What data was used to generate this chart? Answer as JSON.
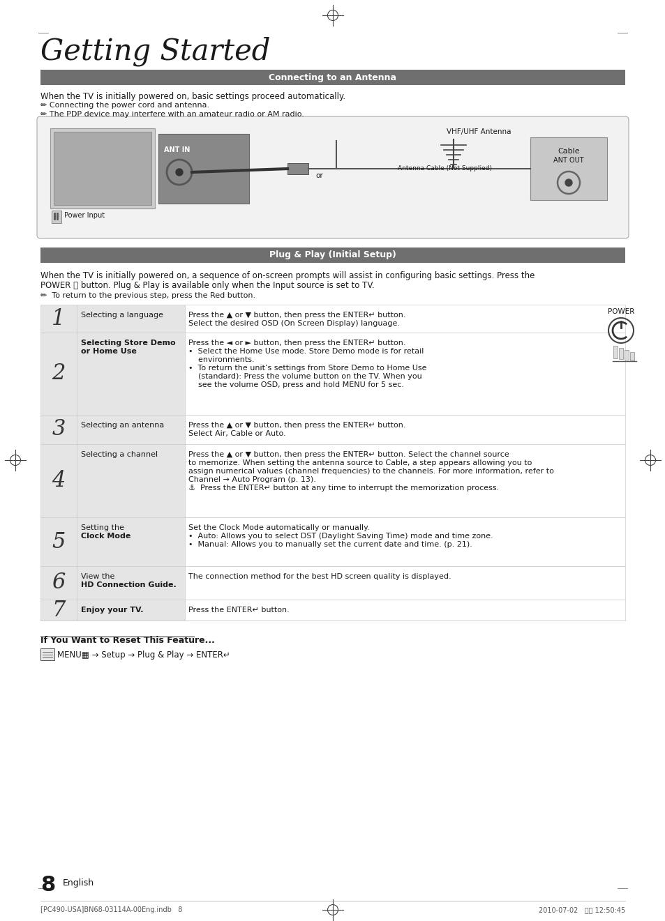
{
  "title": "Getting Started",
  "section1_header": "Connecting to an Antenna",
  "section2_header": "Plug & Play (Initial Setup)",
  "header_bg": "#706f6f",
  "header_text_color": "#ffffff",
  "page_bg": "#ffffff",
  "body_color": "#1a1a1a",
  "row_bg_light": "#e5e5e5",
  "row_bg_white": "#ffffff",
  "section1_text1": "When the TV is initially powered on, basic settings proceed automatically.",
  "section1_text2": "Connecting the power cord and antenna.",
  "section1_text3": "The PDP device may interfere with an amateur radio or AM radio.",
  "section2_intro1": "When the TV is initially powered on, a sequence of on-screen prompts will assist in configuring basic settings. Press the",
  "section2_intro2": "POWER ⏻ button. Plug & Play is available only when the Input source is set to TV.",
  "section2_note": "To return to the previous step, press the Red button.",
  "steps": [
    {
      "num": "1",
      "title_plain": "Selecting a language",
      "title_bold_words": [],
      "content": [
        "Press the ▲ or ▼ button, then press the ENTER↵ button.",
        "Select the desired OSD (On Screen Display) language."
      ]
    },
    {
      "num": "2",
      "title_plain": "Selecting Store Demo\nor Home Use",
      "title_bold_words": [
        "Store Demo",
        "Home Use"
      ],
      "content": [
        "Press the ◄ or ► button, then press the ENTER↵ button.",
        "•  Select the Home Use mode. Store Demo mode is for retail",
        "    environments.",
        "•  To return the unit’s settings from Store Demo to Home Use",
        "    (standard): Press the volume button on the TV. When you",
        "    see the volume OSD, press and hold MENU for 5 sec."
      ]
    },
    {
      "num": "3",
      "title_plain": "Selecting an antenna",
      "title_bold_words": [],
      "content": [
        "Press the ▲ or ▼ button, then press the ENTER↵ button.",
        "Select Air, Cable or Auto."
      ]
    },
    {
      "num": "4",
      "title_plain": "Selecting a channel",
      "title_bold_words": [],
      "content": [
        "Press the ▲ or ▼ button, then press the ENTER↵ button. Select the channel source",
        "to memorize. When setting the antenna source to Cable, a step appears allowing you to",
        "assign numerical values (channel frequencies) to the channels. For more information, refer to",
        "Channel → Auto Program (p. 13).",
        "⚓  Press the ENTER↵ button at any time to interrupt the memorization process."
      ]
    },
    {
      "num": "5",
      "title_plain": "Setting the\nClock Mode",
      "title_bold_words": [
        "Clock Mode"
      ],
      "content": [
        "Set the Clock Mode automatically or manually.",
        "•  Auto: Allows you to select DST (Daylight Saving Time) mode and time zone.",
        "•  Manual: Allows you to manually set the current date and time. (p. 21)."
      ]
    },
    {
      "num": "6",
      "title_plain": "View the\nHD Connection Guide.",
      "title_bold_words": [
        "HD Connection Guide."
      ],
      "content": [
        "The connection method for the best HD screen quality is displayed."
      ]
    },
    {
      "num": "7",
      "title_plain": "Enjoy your TV.",
      "title_bold_words": [
        "Enjoy your TV."
      ],
      "content": [
        "Press the ENTER↵ button."
      ]
    }
  ],
  "reset_title": "If You Want to Reset This Feature...",
  "reset_content": "MENU▦ → Setup → Plug & Play → ENTER↵",
  "page_num": "8",
  "page_label": "English",
  "footer_left": "[PC490-USA]BN68-03114A-00Eng.indb   8",
  "footer_right": "2010-07-02   오후 12:50:45"
}
